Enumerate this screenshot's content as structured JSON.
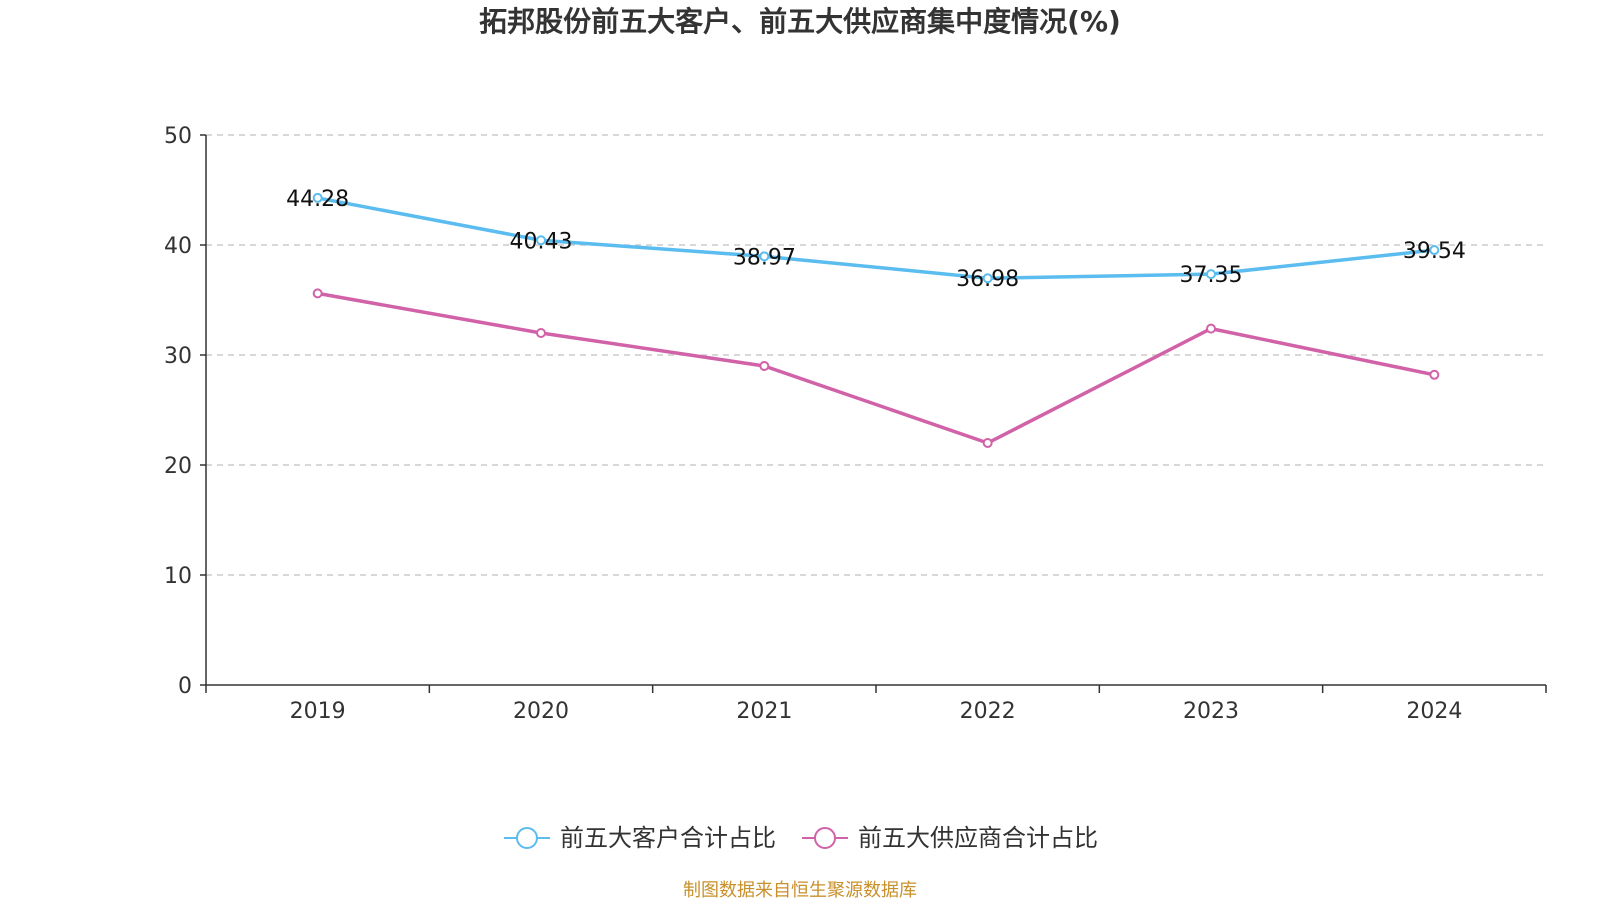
{
  "chart_data": {
    "type": "line",
    "title": "拓邦股份前五大客户、前五大供应商集中度情况(%)",
    "categories": [
      "2019",
      "2020",
      "2021",
      "2022",
      "2023",
      "2024"
    ],
    "ylim": [
      0,
      50
    ],
    "yticks": [
      "0",
      "10",
      "20",
      "30",
      "40",
      "50"
    ],
    "grid": true,
    "legend_position": "bottom-center",
    "series": [
      {
        "name": "前五大客户合计占比",
        "color": "#5bbcef",
        "values": [
          44.28,
          40.43,
          38.97,
          36.98,
          37.35,
          39.54
        ],
        "labels": [
          "44.28",
          "40.43",
          "38.97",
          "36.98",
          "37.35",
          "39.54"
        ],
        "show_labels": true
      },
      {
        "name": "前五大供应商合计占比",
        "color": "#d162a8",
        "values": [
          35.6,
          32.0,
          29.0,
          22.0,
          32.4,
          28.2
        ],
        "show_labels": false
      }
    ],
    "source": "制图数据来自恒生聚源数据库"
  }
}
